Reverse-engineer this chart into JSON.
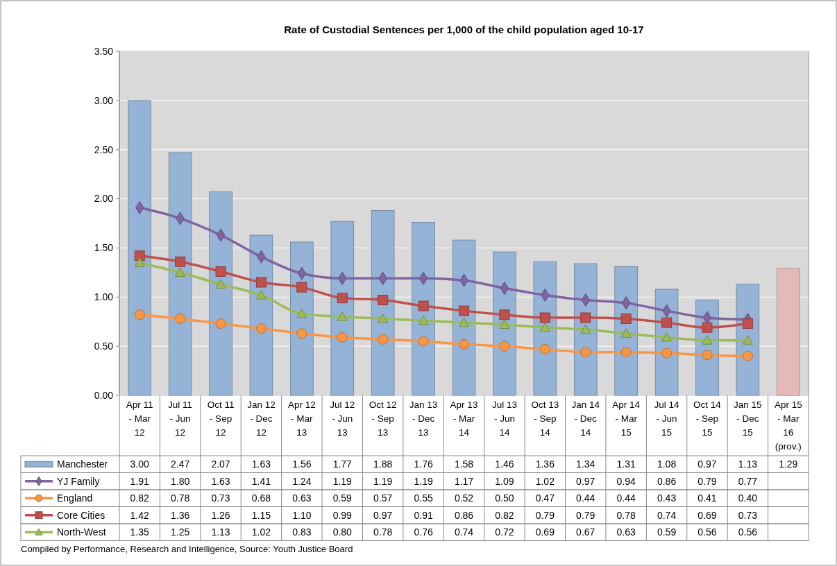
{
  "chart_data": {
    "type": "bar",
    "title": "Rate of Custodial Sentences per 1,000 of the child population aged 10-17",
    "categories": [
      "Apr 11\n- Mar\n12",
      "Jul 11\n- Jun\n12",
      "Oct 11\n- Sep\n12",
      "Jan 12\n- Dec\n12",
      "Apr 12\n- Mar\n13",
      "Jul 12\n- Jun\n13",
      "Oct 12\n- Sep\n13",
      "Jan 13\n- Dec\n13",
      "Apr 13\n- Mar\n14",
      "Jul 13\n- Jun\n14",
      "Oct 13\n- Sep\n14",
      "Jan 14\n- Dec\n14",
      "Apr 14\n- Mar\n15",
      "Jul 14\n- Jun\n15",
      "Oct 14\n- Sep\n15",
      "Jan 15\n- Dec\n15",
      "Apr 15\n- Mar\n16\n(prov.)"
    ],
    "series": [
      {
        "name": "Manchester",
        "color": "#95b3d7",
        "colors": [
          "#95b3d7",
          "#95b3d7",
          "#95b3d7",
          "#95b3d7",
          "#95b3d7",
          "#95b3d7",
          "#95b3d7",
          "#95b3d7",
          "#95b3d7",
          "#95b3d7",
          "#95b3d7",
          "#95b3d7",
          "#95b3d7",
          "#95b3d7",
          "#95b3d7",
          "#95b3d7",
          "#e6b9b8"
        ],
        "values": [
          3.0,
          2.47,
          2.07,
          1.63,
          1.56,
          1.77,
          1.88,
          1.76,
          1.58,
          1.46,
          1.36,
          1.34,
          1.31,
          1.08,
          0.97,
          1.13,
          1.29
        ],
        "value_labels": [
          "3.00",
          "2.47",
          "2.07",
          "1.63",
          "1.56",
          "1.77",
          "1.88",
          "1.76",
          "1.58",
          "1.46",
          "1.36",
          "1.34",
          "1.31",
          "1.08",
          "0.97",
          "1.13",
          "1.29"
        ]
      },
      {
        "name": "YJ Family",
        "type": "line",
        "color": "#8064a2",
        "marker": "diamond",
        "values": [
          1.91,
          1.8,
          1.63,
          1.41,
          1.24,
          1.19,
          1.19,
          1.19,
          1.17,
          1.09,
          1.02,
          0.97,
          0.94,
          0.86,
          0.79,
          0.77,
          null
        ],
        "value_labels": [
          "1.91",
          "1.80",
          "1.63",
          "1.41",
          "1.24",
          "1.19",
          "1.19",
          "1.19",
          "1.17",
          "1.09",
          "1.02",
          "0.97",
          "0.94",
          "0.86",
          "0.79",
          "0.77",
          null
        ]
      },
      {
        "name": "England",
        "type": "line",
        "color": "#f79646",
        "marker": "circle",
        "values": [
          0.82,
          0.78,
          0.73,
          0.68,
          0.63,
          0.59,
          0.57,
          0.55,
          0.52,
          0.5,
          0.47,
          0.44,
          0.44,
          0.43,
          0.41,
          0.4,
          null
        ],
        "value_labels": [
          "0.82",
          "0.78",
          "0.73",
          "0.68",
          "0.63",
          "0.59",
          "0.57",
          "0.55",
          "0.52",
          "0.50",
          "0.47",
          "0.44",
          "0.44",
          "0.43",
          "0.41",
          "0.40",
          null
        ]
      },
      {
        "name": "Core Cities",
        "type": "line",
        "color": "#c0504d",
        "marker": "square",
        "values": [
          1.42,
          1.36,
          1.26,
          1.15,
          1.1,
          0.99,
          0.97,
          0.91,
          0.86,
          0.82,
          0.79,
          0.79,
          0.78,
          0.74,
          0.69,
          0.73,
          null
        ],
        "value_labels": [
          "1.42",
          "1.36",
          "1.26",
          "1.15",
          "1.10",
          "0.99",
          "0.97",
          "0.91",
          "0.86",
          "0.82",
          "0.79",
          "0.79",
          "0.78",
          "0.74",
          "0.69",
          "0.73",
          null
        ]
      },
      {
        "name": "North-West",
        "type": "line",
        "color": "#9bbb59",
        "marker": "triangle",
        "values": [
          1.35,
          1.25,
          1.13,
          1.02,
          0.83,
          0.8,
          0.78,
          0.76,
          0.74,
          0.72,
          0.69,
          0.67,
          0.63,
          0.59,
          0.56,
          0.56,
          null
        ],
        "value_labels": [
          "1.35",
          "1.25",
          "1.13",
          "1.02",
          "0.83",
          "0.80",
          "0.78",
          "0.76",
          "0.74",
          "0.72",
          "0.69",
          "0.67",
          "0.63",
          "0.59",
          "0.56",
          "0.56",
          null
        ]
      }
    ],
    "ylim": [
      0,
      3.5
    ],
    "yticks": [
      {
        "value": 0,
        "label": "0.00"
      },
      {
        "value": 0.5,
        "label": "0.50"
      },
      {
        "value": 1,
        "label": "1.00"
      },
      {
        "value": 1.5,
        "label": "1.50"
      },
      {
        "value": 2,
        "label": "2.00"
      },
      {
        "value": 2.5,
        "label": "2.50"
      },
      {
        "value": 3,
        "label": "3.00"
      },
      {
        "value": 3.5,
        "label": "3.50"
      }
    ],
    "grid": "y",
    "legend": "bottom",
    "annotations": [
      "Compiled by Performance, Research and Intelligence, Source: Youth Justice Board"
    ]
  }
}
